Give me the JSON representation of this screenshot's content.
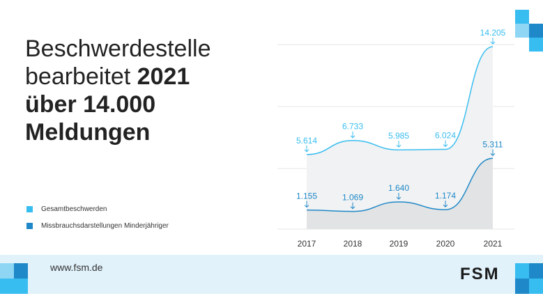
{
  "headline": {
    "line1": "Beschwerdestelle",
    "line2_regular": "bearbeitet ",
    "line2_bold": "2021",
    "line3": "über 14.000",
    "line4": "Meldungen"
  },
  "legend": [
    {
      "label": "Gesamtbeschwerden",
      "color": "#38bdf0"
    },
    {
      "label": "Missbrauchsdarstellungen Minderjähriger",
      "color": "#1e88c8"
    }
  ],
  "footer": {
    "url": "www.fsm.de",
    "logo": "FSM"
  },
  "colors": {
    "accent_light": "#38bdf0",
    "accent_dark": "#1e88c8",
    "footer_bg": "#e1f2fb"
  },
  "chart_data": {
    "type": "area",
    "categories": [
      "2017",
      "2018",
      "2019",
      "2020",
      "2021"
    ],
    "series": [
      {
        "name": "Gesamtbeschwerden",
        "values": [
          5614,
          6733,
          5985,
          6024,
          14205
        ],
        "labels": [
          "5.614",
          "6.733",
          "5.985",
          "6.024",
          "14.205"
        ],
        "color": "#38bdf0"
      },
      {
        "name": "Missbrauchsdarstellungen Minderjähriger",
        "values": [
          1155,
          1069,
          1640,
          1174,
          5311
        ],
        "labels": [
          "1.155",
          "1.069",
          "1.640",
          "1.174",
          "5.311"
        ],
        "color": "#1e88c8"
      }
    ],
    "grid": true,
    "legend_position": "left"
  }
}
